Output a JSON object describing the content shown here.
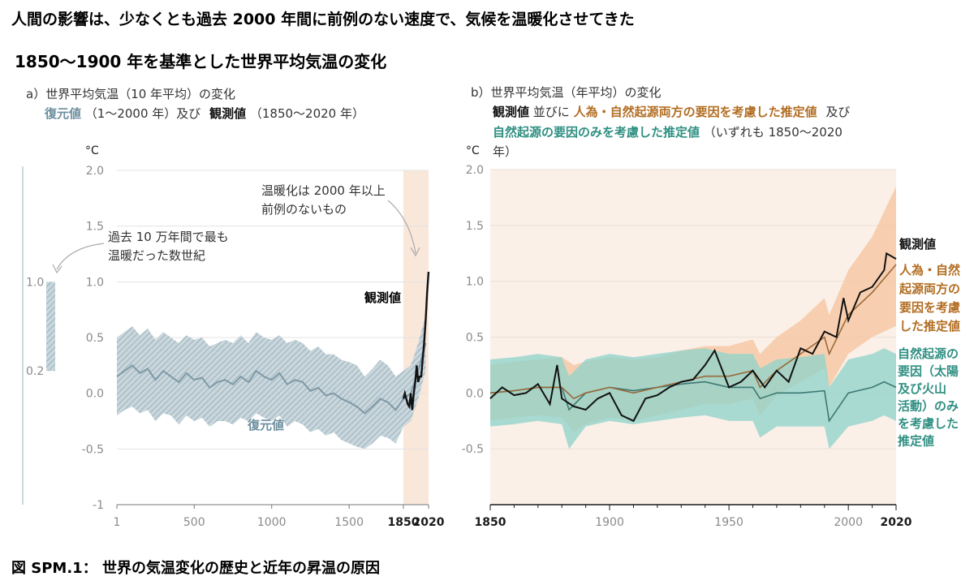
{
  "header": {
    "title": "人間の影響は、少なくとも過去 2000 年間に前例のない速度で、気候を温暖化させてきた",
    "subtitle": "1850〜1900 年を基準とした世界平均気温の変化"
  },
  "caption": "図 SPM.1： 世界の気温変化の歴史と近年の昇温の原因",
  "colors": {
    "observed": "#111111",
    "reconstruction": "#7f99a6",
    "reconstruction_band": "#b9c9d1",
    "human_natural": "#9a6a3a",
    "human_natural_band": "#f6c9a6",
    "natural": "#3d7873",
    "natural_band": "#8cd3cb",
    "recent_shade": "#f9e7da",
    "panel_b_bg": "#fbf0e8"
  },
  "chart_data": [
    {
      "type": "line",
      "panel_label": "a）世界平均気温（10 年平均）の変化",
      "panel_desc": {
        "recon_label": "復元値",
        "recon_period": "（1〜2000 年）及び",
        "obs_label": "観測値",
        "obs_period": "（1850〜2020 年）"
      },
      "yunit": "°C",
      "ylim": [
        -1.0,
        2.0
      ],
      "yticks": [
        "2.0",
        "1.5",
        "1.0",
        "0.5",
        "0.0",
        "-0.5",
        "-1"
      ],
      "xticks": [
        {
          "label": "1",
          "bold": false
        },
        {
          "label": "500",
          "bold": false
        },
        {
          "label": "1000",
          "bold": false
        },
        {
          "label": "1500",
          "bold": false
        },
        {
          "label": "1850",
          "bold": true
        },
        {
          "label": "2020",
          "bold": true
        }
      ],
      "annotations": {
        "warm_period_line1": "過去 10 万年間で最も",
        "warm_period_line2": "温暖だった数世紀",
        "unprecedented_line1": "温暖化は 2000 年以上",
        "unprecedented_line2": "前例のないもの",
        "observed_label": "観測値",
        "recon_label": "復元値"
      },
      "warm_period_bar": {
        "top": "1.0",
        "bottom": "0.2",
        "top_value": 1.0,
        "bottom_value": 0.2
      },
      "series": [
        {
          "name": "復元値",
          "x": [
            1,
            50,
            100,
            150,
            200,
            250,
            300,
            350,
            400,
            450,
            500,
            550,
            600,
            650,
            700,
            750,
            800,
            850,
            900,
            950,
            1000,
            1050,
            1100,
            1150,
            1200,
            1250,
            1300,
            1350,
            1400,
            1450,
            1500,
            1550,
            1600,
            1650,
            1700,
            1750,
            1800,
            1850,
            1900,
            1950,
            2000
          ],
          "values": [
            0.15,
            0.2,
            0.25,
            0.18,
            0.22,
            0.12,
            0.2,
            0.15,
            0.1,
            0.18,
            0.12,
            0.14,
            0.05,
            0.1,
            0.12,
            0.08,
            0.15,
            0.1,
            0.2,
            0.15,
            0.12,
            0.18,
            0.08,
            0.12,
            0.1,
            0.02,
            0.05,
            -0.02,
            0.0,
            -0.05,
            -0.08,
            -0.12,
            -0.18,
            -0.12,
            -0.05,
            -0.08,
            -0.15,
            -0.05,
            0.0,
            0.2,
            0.45
          ],
          "lower": [
            -0.2,
            -0.15,
            -0.12,
            -0.18,
            -0.15,
            -0.25,
            -0.18,
            -0.2,
            -0.28,
            -0.2,
            -0.25,
            -0.22,
            -0.3,
            -0.25,
            -0.25,
            -0.28,
            -0.22,
            -0.25,
            -0.18,
            -0.22,
            -0.25,
            -0.2,
            -0.3,
            -0.25,
            -0.28,
            -0.35,
            -0.32,
            -0.38,
            -0.35,
            -0.42,
            -0.45,
            -0.48,
            -0.5,
            -0.45,
            -0.38,
            -0.4,
            -0.45,
            -0.3,
            -0.25,
            -0.05,
            0.2
          ],
          "upper": [
            0.5,
            0.55,
            0.6,
            0.52,
            0.58,
            0.48,
            0.55,
            0.5,
            0.45,
            0.52,
            0.48,
            0.5,
            0.42,
            0.45,
            0.48,
            0.45,
            0.52,
            0.45,
            0.55,
            0.5,
            0.48,
            0.52,
            0.45,
            0.48,
            0.45,
            0.38,
            0.42,
            0.35,
            0.35,
            0.3,
            0.28,
            0.25,
            0.15,
            0.22,
            0.3,
            0.25,
            0.15,
            0.2,
            0.25,
            0.45,
            0.7
          ]
        },
        {
          "name": "観測値",
          "x": [
            1850,
            1860,
            1870,
            1880,
            1890,
            1900,
            1910,
            1920,
            1930,
            1940,
            1950,
            1960,
            1970,
            1980,
            1990,
            2000,
            2010,
            2020
          ],
          "values": [
            -0.05,
            0.0,
            -0.05,
            -0.1,
            -0.12,
            0.0,
            -0.15,
            0.0,
            0.1,
            0.25,
            0.1,
            0.15,
            0.15,
            0.3,
            0.45,
            0.65,
            0.9,
            1.09
          ]
        }
      ]
    },
    {
      "type": "line",
      "panel_label": "b）世界平均気温（年平均）の変化",
      "panel_desc": {
        "obs_label": "観測値",
        "and1": "並びに",
        "hn_label": "人為・自然起源両方の要因を考慮した推定値",
        "and2": "及び",
        "nat_label": "自然起源の要因のみを考慮した推定値",
        "period": "（いずれも 1850〜2020",
        "period2": "年）"
      },
      "yunit": "°C",
      "ylim": [
        -1.0,
        2.0
      ],
      "yticks": [
        "2.0",
        "1.5",
        "1.0",
        "0.5",
        "0.0",
        "-0.5"
      ],
      "xticks": [
        {
          "label": "1850",
          "bold": true
        },
        {
          "label": "1900",
          "bold": false
        },
        {
          "label": "1950",
          "bold": false
        },
        {
          "label": "2000",
          "bold": false
        },
        {
          "label": "2020",
          "bold": true
        }
      ],
      "legend": {
        "observed": "観測値",
        "human_natural": [
          "人為・自然",
          "起源両方の",
          "要因を考慮",
          "した推定値"
        ],
        "natural": [
          "自然起源の",
          "要因（太陽",
          "及び火山",
          "活動）のみ",
          "を考慮した",
          "推定値"
        ]
      },
      "series": [
        {
          "name": "観測値",
          "x": [
            1850,
            1855,
            1860,
            1865,
            1870,
            1875,
            1878,
            1880,
            1885,
            1890,
            1895,
            1900,
            1905,
            1910,
            1915,
            1920,
            1925,
            1930,
            1935,
            1940,
            1944,
            1950,
            1955,
            1960,
            1965,
            1970,
            1975,
            1980,
            1985,
            1990,
            1995,
            1998,
            2000,
            2005,
            2010,
            2015,
            2016,
            2020
          ],
          "values": [
            -0.05,
            0.05,
            -0.02,
            0.0,
            0.08,
            -0.1,
            0.25,
            -0.05,
            -0.12,
            -0.15,
            -0.05,
            0.0,
            -0.2,
            -0.25,
            -0.05,
            -0.02,
            0.05,
            0.1,
            0.12,
            0.25,
            0.38,
            0.05,
            0.1,
            0.2,
            0.05,
            0.2,
            0.1,
            0.4,
            0.35,
            0.55,
            0.5,
            0.85,
            0.65,
            0.9,
            0.95,
            1.1,
            1.25,
            1.2
          ]
        },
        {
          "name": "人為・自然起源両方の要因を考慮した推定値",
          "x": [
            1850,
            1860,
            1870,
            1880,
            1885,
            1890,
            1900,
            1910,
            1920,
            1930,
            1940,
            1950,
            1960,
            1963,
            1970,
            1980,
            1990,
            1992,
            2000,
            2010,
            2020
          ],
          "values": [
            0.0,
            0.02,
            0.05,
            0.05,
            -0.05,
            0.0,
            0.05,
            0.0,
            0.05,
            0.1,
            0.15,
            0.15,
            0.2,
            0.05,
            0.2,
            0.35,
            0.5,
            0.35,
            0.7,
            0.9,
            1.15
          ],
          "lower": [
            -0.25,
            -0.22,
            -0.2,
            -0.22,
            -0.35,
            -0.28,
            -0.22,
            -0.25,
            -0.2,
            -0.15,
            -0.1,
            -0.1,
            -0.05,
            -0.2,
            -0.02,
            0.1,
            0.22,
            0.05,
            0.35,
            0.5,
            0.6
          ],
          "upper": [
            0.25,
            0.28,
            0.3,
            0.32,
            0.25,
            0.28,
            0.32,
            0.3,
            0.32,
            0.38,
            0.42,
            0.42,
            0.48,
            0.35,
            0.5,
            0.65,
            0.85,
            0.7,
            1.1,
            1.4,
            1.85
          ]
        },
        {
          "name": "自然起源の要因のみを考慮した推定値",
          "x": [
            1850,
            1860,
            1870,
            1880,
            1883,
            1890,
            1900,
            1910,
            1920,
            1930,
            1940,
            1950,
            1960,
            1963,
            1970,
            1980,
            1990,
            1992,
            2000,
            2010,
            2015,
            2020
          ],
          "values": [
            0.0,
            0.02,
            0.05,
            0.05,
            -0.15,
            0.0,
            0.05,
            0.02,
            0.05,
            0.08,
            0.1,
            0.05,
            0.05,
            -0.05,
            0.0,
            0.0,
            0.02,
            -0.25,
            0.0,
            0.05,
            0.1,
            0.05
          ],
          "lower": [
            -0.3,
            -0.28,
            -0.25,
            -0.28,
            -0.5,
            -0.3,
            -0.25,
            -0.28,
            -0.25,
            -0.22,
            -0.2,
            -0.25,
            -0.25,
            -0.4,
            -0.3,
            -0.3,
            -0.3,
            -0.5,
            -0.3,
            -0.25,
            -0.2,
            -0.25
          ],
          "upper": [
            0.3,
            0.32,
            0.35,
            0.32,
            0.15,
            0.3,
            0.35,
            0.32,
            0.35,
            0.38,
            0.4,
            0.35,
            0.35,
            0.22,
            0.3,
            0.32,
            0.35,
            0.05,
            0.3,
            0.35,
            0.4,
            0.35
          ]
        }
      ]
    }
  ]
}
